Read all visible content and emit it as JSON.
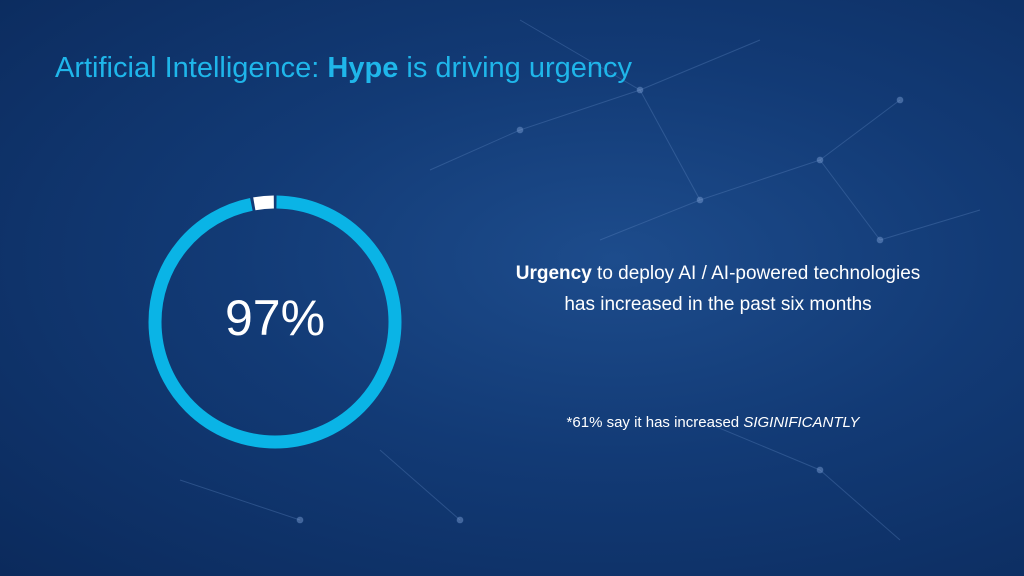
{
  "title": {
    "prefix": "Artificial Intelligence: ",
    "bold": "Hype",
    "suffix": " is driving urgency"
  },
  "gauge": {
    "value": 97,
    "value_label": "97%",
    "color": "#0ab4e6",
    "remainder_color": "#ffffff"
  },
  "statement": {
    "bold": "Urgency",
    "text": " to deploy AI / AI-powered technologies has increased in the past six months"
  },
  "footnote": {
    "text": "*61% say it has increased ",
    "emphasis": "SIGINIFICANTLY"
  }
}
